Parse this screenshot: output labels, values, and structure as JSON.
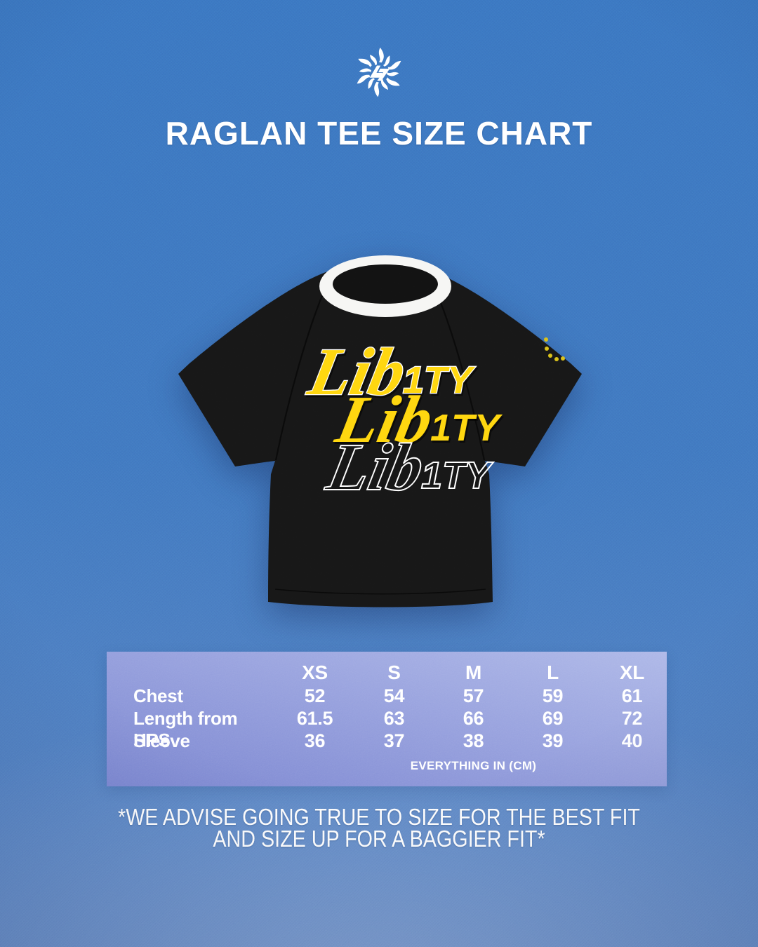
{
  "header": {
    "title": "RAGLAN TEE SIZE CHART",
    "brand_logo_icon": "sun-logo"
  },
  "tee": {
    "style": "black raglan tee with white ringer collar",
    "graphic": {
      "lines": [
        {
          "script": "Lib",
          "block": "1TY",
          "variant": "yellow with white outline"
        },
        {
          "script": "Lib",
          "block": "1TY",
          "variant": "yellow"
        },
        {
          "script": "Lib",
          "block": "1TY",
          "variant": "white outline only"
        }
      ]
    },
    "sleeve_mark_count": 5
  },
  "chart_data": {
    "type": "table",
    "title": "RAGLAN TEE SIZE CHART",
    "columns": [
      "",
      "XS",
      "S",
      "M",
      "L",
      "XL"
    ],
    "rows": [
      {
        "label": "Chest",
        "values": [
          "52",
          "54",
          "57",
          "59",
          "61"
        ]
      },
      {
        "label": "Length from HPS",
        "values": [
          "61.5",
          "63",
          "66",
          "69",
          "72"
        ]
      },
      {
        "label": "Sleeve",
        "values": [
          "36",
          "37",
          "38",
          "39",
          "40"
        ]
      }
    ],
    "unit": "EVERYTHING IN (CM)"
  },
  "footer": {
    "line1": "*WE ADVISE GOING TRUE TO SIZE FOR THE BEST FIT",
    "line2": "AND SIZE UP FOR A BAGGIER FIT*"
  },
  "colors": {
    "background_blue": "#4078c1",
    "panel_light": "#aeb8e8",
    "panel_dark": "#7b86d1",
    "tee_black": "#171717",
    "collar_white": "#f6f6f4",
    "logo_yellow": "#ffd60f",
    "text_white": "#ffffff"
  }
}
